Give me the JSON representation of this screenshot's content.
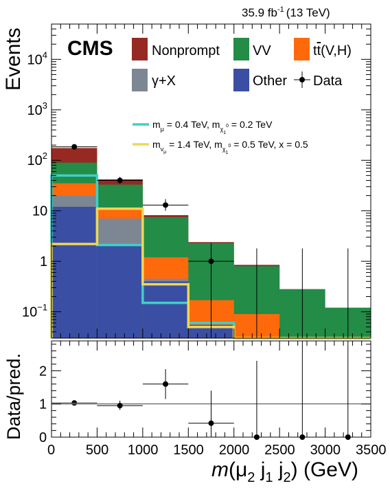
{
  "header": {
    "lumi": "35.9 fb",
    "lumi_exp": "-1",
    "energy": "(13 TeV)",
    "cms": "CMS"
  },
  "colors": {
    "Nonprompt": "#962a22",
    "VV": "#238c47",
    "ttVH": "#fe6a0b",
    "gammaX": "#7c8793",
    "Other": "#3a4fa3",
    "signal1": "#3fd0c8",
    "signal2": "#f1d654"
  },
  "legend": {
    "nonprompt": "Nonprompt",
    "vv": "VV",
    "ttvh_t": "t",
    "ttvh_tbar": "t",
    "ttvh_rest": "(V,H)",
    "gammax": "γ+X",
    "other": "Other",
    "data": "Data",
    "sig1_m": "m",
    "sig1_sub": "μ",
    "sig1_text1": " = 0.4 TeV, m",
    "sig1_sub2": "χ",
    "sig1_sub2b": "1",
    "sig1_sub2c": "0",
    "sig1_text2": " = 0.2 TeV",
    "sig2_m": "m",
    "sig2_sub": "ν",
    "sig2_subb": "μ",
    "sig2_text1": " = 1.4 TeV, m",
    "sig2_sub2": "χ",
    "sig2_sub2b": "1",
    "sig2_sub2c": "0",
    "sig2_text2": " = 0.5 TeV, x = 0.5"
  },
  "chart_data": [
    {
      "type": "bar",
      "stacked": true,
      "log_y": true,
      "ylabel": "Events",
      "ylim": [
        0.03,
        50000
      ],
      "y_ticks": [
        {
          "v": 0.1,
          "base": "10",
          "exp": "−1"
        },
        {
          "v": 1,
          "base": "1",
          "exp": ""
        },
        {
          "v": 10,
          "base": "10",
          "exp": ""
        },
        {
          "v": 100,
          "base": "10",
          "exp": "2"
        },
        {
          "v": 1000,
          "base": "10",
          "exp": "3"
        },
        {
          "v": 10000,
          "base": "10",
          "exp": "4"
        }
      ],
      "bin_edges": [
        0,
        500,
        1000,
        1500,
        2000,
        2500,
        3000,
        3500
      ],
      "stack_cumulative": [
        {
          "name": "Other",
          "values": [
            12,
            2.2,
            0.4,
            0.055,
            0,
            0,
            0
          ]
        },
        {
          "name": "γ+X",
          "values": [
            20,
            7,
            0.45,
            0.055,
            0,
            0,
            0
          ]
        },
        {
          "name": "tt̄(V,H)",
          "values": [
            35,
            11,
            1.2,
            0.17,
            0.09,
            0,
            0
          ]
        },
        {
          "name": "VV",
          "values": [
            90,
            33,
            7.5,
            2.3,
            0.8,
            0.28,
            0.12
          ]
        },
        {
          "name": "Nonprompt",
          "values": [
            175,
            42,
            8.2,
            2.4,
            0.85,
            0.28,
            0.12
          ]
        }
      ],
      "signals": [
        {
          "key": "sig1",
          "values": [
            50,
            2.1,
            0.15,
            0.06,
            0,
            0,
            0
          ]
        },
        {
          "key": "sig2",
          "values": [
            2.2,
            11,
            0.35,
            0.05,
            0,
            0,
            0
          ]
        }
      ],
      "data_points": [
        {
          "x": 250,
          "y": 185,
          "ylo": 170,
          "yhi": 200
        },
        {
          "x": 750,
          "y": 40,
          "ylo": 34,
          "yhi": 47
        },
        {
          "x": 1250,
          "y": 13,
          "ylo": 10,
          "yhi": 17
        },
        {
          "x": 1750,
          "y": 1,
          "ylo": 0.03,
          "yhi": 2.3
        },
        {
          "x": 2250,
          "y": 0,
          "ylo": 0.03,
          "yhi": 1.8
        },
        {
          "x": 2750,
          "y": 0,
          "ylo": 0.03,
          "yhi": 1.8
        },
        {
          "x": 3250,
          "y": 0,
          "ylo": 0.03,
          "yhi": 1.8
        }
      ]
    },
    {
      "type": "scatter",
      "ylabel": "Data/pred.",
      "xlabel_m": "m",
      "xlabel_mu": "(μ",
      "xlabel_sub1": "2",
      "xlabel_j1": " j",
      "xlabel_sub2": "1",
      "xlabel_j2": " j",
      "xlabel_sub3": "2",
      "xlabel_units": ") (GeV)",
      "xlim": [
        0,
        3500
      ],
      "ylim": [
        0,
        2.9
      ],
      "x_ticks": [
        "0",
        "500",
        "1000",
        "1500",
        "2000",
        "2500",
        "3000",
        "3500"
      ],
      "x_tick_values": [
        0,
        500,
        1000,
        1500,
        2000,
        2500,
        3000,
        3500
      ],
      "y_ticks": [
        "0",
        "1",
        "2"
      ],
      "y_tick_values": [
        0,
        1,
        2
      ],
      "reference_line": 1,
      "points": [
        {
          "x": 250,
          "y": 1.03,
          "ylo": 0.98,
          "yhi": 1.08
        },
        {
          "x": 750,
          "y": 0.95,
          "ylo": 0.82,
          "yhi": 1.1
        },
        {
          "x": 1250,
          "y": 1.6,
          "ylo": 1.15,
          "yhi": 2.05
        },
        {
          "x": 1750,
          "y": 0.42,
          "ylo": 0,
          "yhi": 1.4
        },
        {
          "x": 2250,
          "y": 0,
          "ylo": 0,
          "yhi": 2.3
        },
        {
          "x": 2750,
          "y": 0,
          "ylo": 0,
          "yhi": 2.9
        },
        {
          "x": 3250,
          "y": 0,
          "ylo": 0,
          "yhi": 2.9
        }
      ]
    }
  ]
}
